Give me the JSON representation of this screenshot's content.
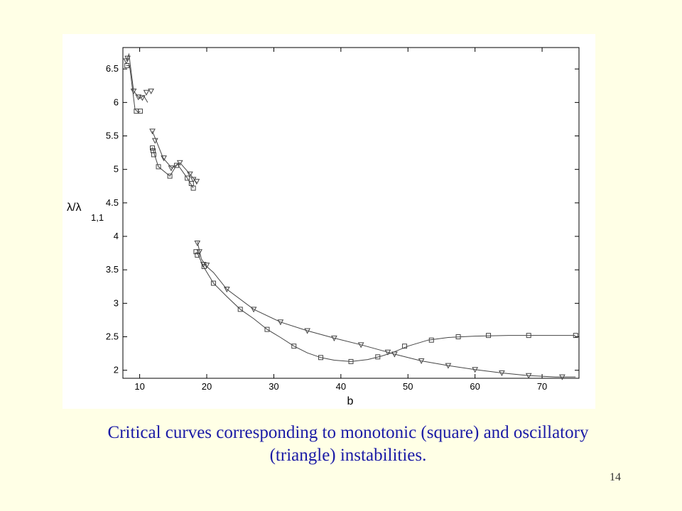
{
  "caption_line1": "Critical curves corresponding to monotonic (square) and oscillatory",
  "caption_line2": "(triangle) instabilities.",
  "page_number": "14",
  "colors": {
    "background": "#FFFFE6",
    "caption": "#1A1AA6",
    "curve": "#444444"
  },
  "chart_data": {
    "type": "line",
    "title": "",
    "xlabel": "b",
    "ylabel_main": "λ/λ",
    "ylabel_sub": "1,1",
    "xlim": [
      7.5,
      75.5
    ],
    "ylim": [
      1.88,
      6.82
    ],
    "xticks": [
      10,
      20,
      30,
      40,
      50,
      60,
      70
    ],
    "yticks": [
      2,
      2.5,
      3,
      3.5,
      4,
      4.5,
      5,
      5.5,
      6,
      6.5
    ],
    "grid": false,
    "series": [
      {
        "marker": "square",
        "segments": [
          [
            [
              8,
              6.55
            ],
            [
              8.5,
              6.55
            ],
            [
              9.3,
              5.9
            ],
            [
              9.8,
              5.85
            ],
            [
              10.1,
              5.87
            ]
          ],
          [
            [
              11.9,
              5.33
            ],
            [
              12.2,
              5.22
            ],
            [
              12.8,
              5.04
            ],
            [
              14.5,
              4.9
            ],
            [
              15.6,
              5.08
            ],
            [
              17.1,
              4.87
            ],
            [
              18.0,
              4.72
            ]
          ],
          [
            [
              18.5,
              3.77
            ],
            [
              19.5,
              3.55
            ],
            [
              21,
              3.3
            ],
            [
              23,
              3.1
            ],
            [
              25,
              2.91
            ],
            [
              27,
              2.77
            ],
            [
              29,
              2.61
            ],
            [
              31,
              2.49
            ],
            [
              33,
              2.36
            ],
            [
              35,
              2.26
            ],
            [
              37,
              2.19
            ],
            [
              39,
              2.15
            ],
            [
              41.5,
              2.13
            ],
            [
              44,
              2.16
            ],
            [
              46,
              2.21
            ],
            [
              47.6,
              2.26
            ],
            [
              50,
              2.36
            ],
            [
              53,
              2.45
            ],
            [
              56,
              2.49
            ],
            [
              60,
              2.51
            ],
            [
              65,
              2.52
            ],
            [
              70,
              2.52
            ],
            [
              75,
              2.52
            ]
          ]
        ],
        "markers": [
          [
            8.1,
            6.55
          ],
          [
            9.5,
            5.87
          ],
          [
            10.1,
            5.87
          ],
          [
            11.9,
            5.32
          ],
          [
            12.0,
            5.28
          ],
          [
            12.1,
            5.22
          ],
          [
            12.8,
            5.04
          ],
          [
            14.5,
            4.9
          ],
          [
            15.5,
            5.06
          ],
          [
            17.1,
            4.87
          ],
          [
            17.7,
            4.79
          ],
          [
            18.0,
            4.72
          ],
          [
            18.4,
            3.77
          ],
          [
            18.6,
            3.72
          ],
          [
            19.6,
            3.55
          ],
          [
            21,
            3.3
          ],
          [
            25,
            2.91
          ],
          [
            29,
            2.61
          ],
          [
            33,
            2.36
          ],
          [
            37,
            2.19
          ],
          [
            41.5,
            2.13
          ],
          [
            45.5,
            2.2
          ],
          [
            49.5,
            2.36
          ],
          [
            53.5,
            2.45
          ],
          [
            57.5,
            2.5
          ],
          [
            62,
            2.52
          ],
          [
            68,
            2.52
          ],
          [
            75,
            2.52
          ]
        ]
      },
      {
        "marker": "triangle",
        "segments": [
          [
            [
              8,
              6.62
            ],
            [
              8.4,
              6.72
            ],
            [
              9.1,
              6.17
            ],
            [
              10.0,
              6.06
            ],
            [
              10.6,
              6.1
            ],
            [
              11.2,
              6.0
            ]
          ],
          [
            [
              11.9,
              5.57
            ],
            [
              12.5,
              5.42
            ],
            [
              13.5,
              5.17
            ],
            [
              14.8,
              5.02
            ],
            [
              16.0,
              5.1
            ],
            [
              17.5,
              4.93
            ],
            [
              18.5,
              4.8
            ]
          ],
          [
            [
              18.6,
              3.92
            ],
            [
              19.2,
              3.66
            ],
            [
              20,
              3.55
            ],
            [
              21,
              3.46
            ],
            [
              23,
              3.21
            ],
            [
              27,
              2.91
            ],
            [
              31,
              2.72
            ],
            [
              35,
              2.59
            ],
            [
              39,
              2.48
            ],
            [
              43,
              2.38
            ],
            [
              47,
              2.27
            ],
            [
              48,
              2.24
            ],
            [
              52,
              2.14
            ],
            [
              56,
              2.07
            ],
            [
              60,
              2.01
            ],
            [
              64,
              1.96
            ],
            [
              68,
              1.92
            ],
            [
              72,
              1.9
            ],
            [
              75,
              1.9
            ]
          ]
        ],
        "markers": [
          [
            8.0,
            6.62
          ],
          [
            8.2,
            6.66
          ],
          [
            9.1,
            6.17
          ],
          [
            9.8,
            6.08
          ],
          [
            10.4,
            6.07
          ],
          [
            11.0,
            6.15
          ],
          [
            11.7,
            6.17
          ],
          [
            11.9,
            5.57
          ],
          [
            12.3,
            5.43
          ],
          [
            13.6,
            5.17
          ],
          [
            14.7,
            5.02
          ],
          [
            16.0,
            5.1
          ],
          [
            17.5,
            4.93
          ],
          [
            18.0,
            4.85
          ],
          [
            18.5,
            4.82
          ],
          [
            18.6,
            3.9
          ],
          [
            18.9,
            3.77
          ],
          [
            19.5,
            3.58
          ],
          [
            20,
            3.57
          ],
          [
            23,
            3.21
          ],
          [
            27,
            2.91
          ],
          [
            31,
            2.72
          ],
          [
            35,
            2.59
          ],
          [
            39,
            2.48
          ],
          [
            43,
            2.38
          ],
          [
            47,
            2.27
          ],
          [
            48,
            2.24
          ],
          [
            52,
            2.14
          ],
          [
            56,
            2.07
          ],
          [
            60,
            2.01
          ],
          [
            64,
            1.96
          ],
          [
            68,
            1.92
          ],
          [
            73,
            1.9
          ]
        ]
      }
    ]
  }
}
